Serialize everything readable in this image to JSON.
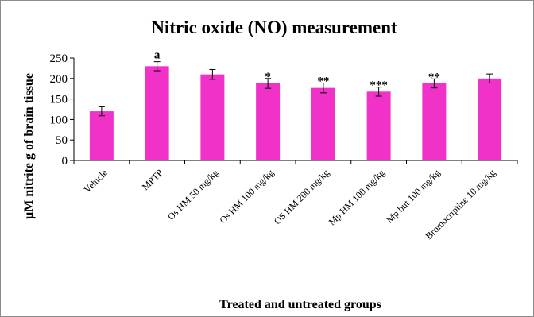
{
  "chart_data": {
    "type": "bar",
    "title": "Nitric oxide (NO) measurement",
    "xlabel": "Treated and untreated groups",
    "ylabel": "µM nitrite g of brain tissue",
    "ylim": [
      0,
      250
    ],
    "yticks": [
      0,
      50,
      100,
      150,
      200,
      250
    ],
    "grid": false,
    "legend": "none",
    "bar_color": "#f032c8",
    "categories": [
      "Vehicle",
      "MPTP",
      "Os HM 50 mg/kg",
      "Os HM 100 mg/kg",
      "OS HM 200 mg/kg",
      "Mp HM 100 mg/kg",
      "Mp but 100 mg/kg",
      "Bromocriptine 10 mg/kg"
    ],
    "values": [
      120,
      230,
      210,
      188,
      177,
      168,
      188,
      200
    ],
    "errors": [
      11,
      11,
      12,
      12,
      12,
      11,
      11,
      11
    ],
    "annotations": [
      "",
      "a",
      "",
      "*",
      "**",
      "***",
      "**",
      ""
    ]
  }
}
